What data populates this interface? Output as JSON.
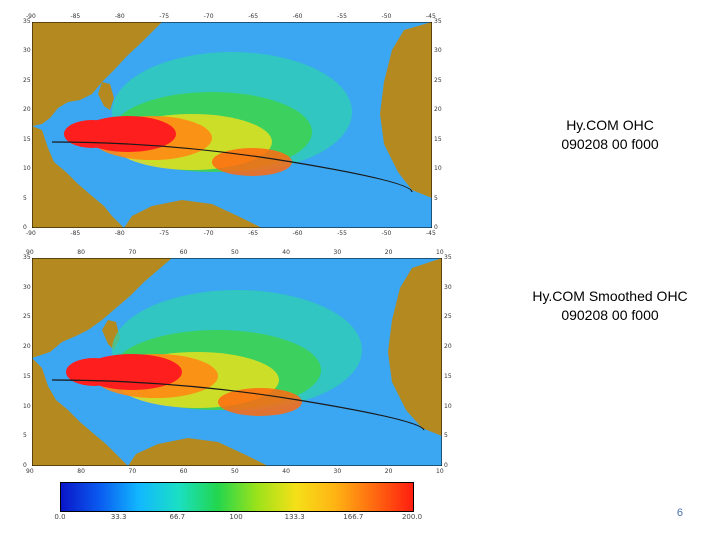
{
  "slide": {
    "page_number": "6"
  },
  "panels": [
    {
      "caption_line1": "Hy.COM OHC",
      "caption_line2": "090208 00 f000",
      "top_ticks": [
        "-90",
        "-85",
        "-80",
        "-75",
        "-70",
        "-65",
        "-60",
        "-55",
        "-50",
        "-45"
      ],
      "bottom_ticks": [
        "-90",
        "-85",
        "-80",
        "-75",
        "-70",
        "-65",
        "-60",
        "-55",
        "-50",
        "-45"
      ],
      "left_ticks": [
        "35",
        "30",
        "25",
        "20",
        "15",
        "10",
        "5",
        "0"
      ],
      "right_ticks": [
        "35",
        "30",
        "25",
        "20",
        "15",
        "10",
        "5",
        "0"
      ]
    },
    {
      "caption_line1": "Hy.COM Smoothed OHC",
      "caption_line2": "090208 00 f000",
      "top_ticks": [
        "90",
        "80",
        "70",
        "60",
        "50",
        "40",
        "30",
        "20",
        "10"
      ],
      "bottom_ticks": [
        "90",
        "80",
        "70",
        "60",
        "50",
        "40",
        "30",
        "20",
        "10"
      ],
      "left_ticks": [
        "35",
        "30",
        "25",
        "20",
        "15",
        "10",
        "5",
        "0"
      ],
      "right_ticks": [
        "35",
        "30",
        "25",
        "20",
        "15",
        "10",
        "5",
        "0"
      ]
    }
  ],
  "colorbar": {
    "ticks": [
      "0.0",
      "33.3",
      "66.7",
      "100",
      "133.3",
      "166.7",
      "200.0"
    ],
    "colors": [
      "#0a16c8",
      "#0a5cf0",
      "#12b8ff",
      "#1adfc4",
      "#22d64e",
      "#9ae21a",
      "#f5e018",
      "#ffb414",
      "#ff6a10",
      "#ff1e10"
    ]
  },
  "colors": {
    "ocean": "#3ba6f2",
    "land": "#b48a20",
    "hot": "#ff1e1e"
  }
}
